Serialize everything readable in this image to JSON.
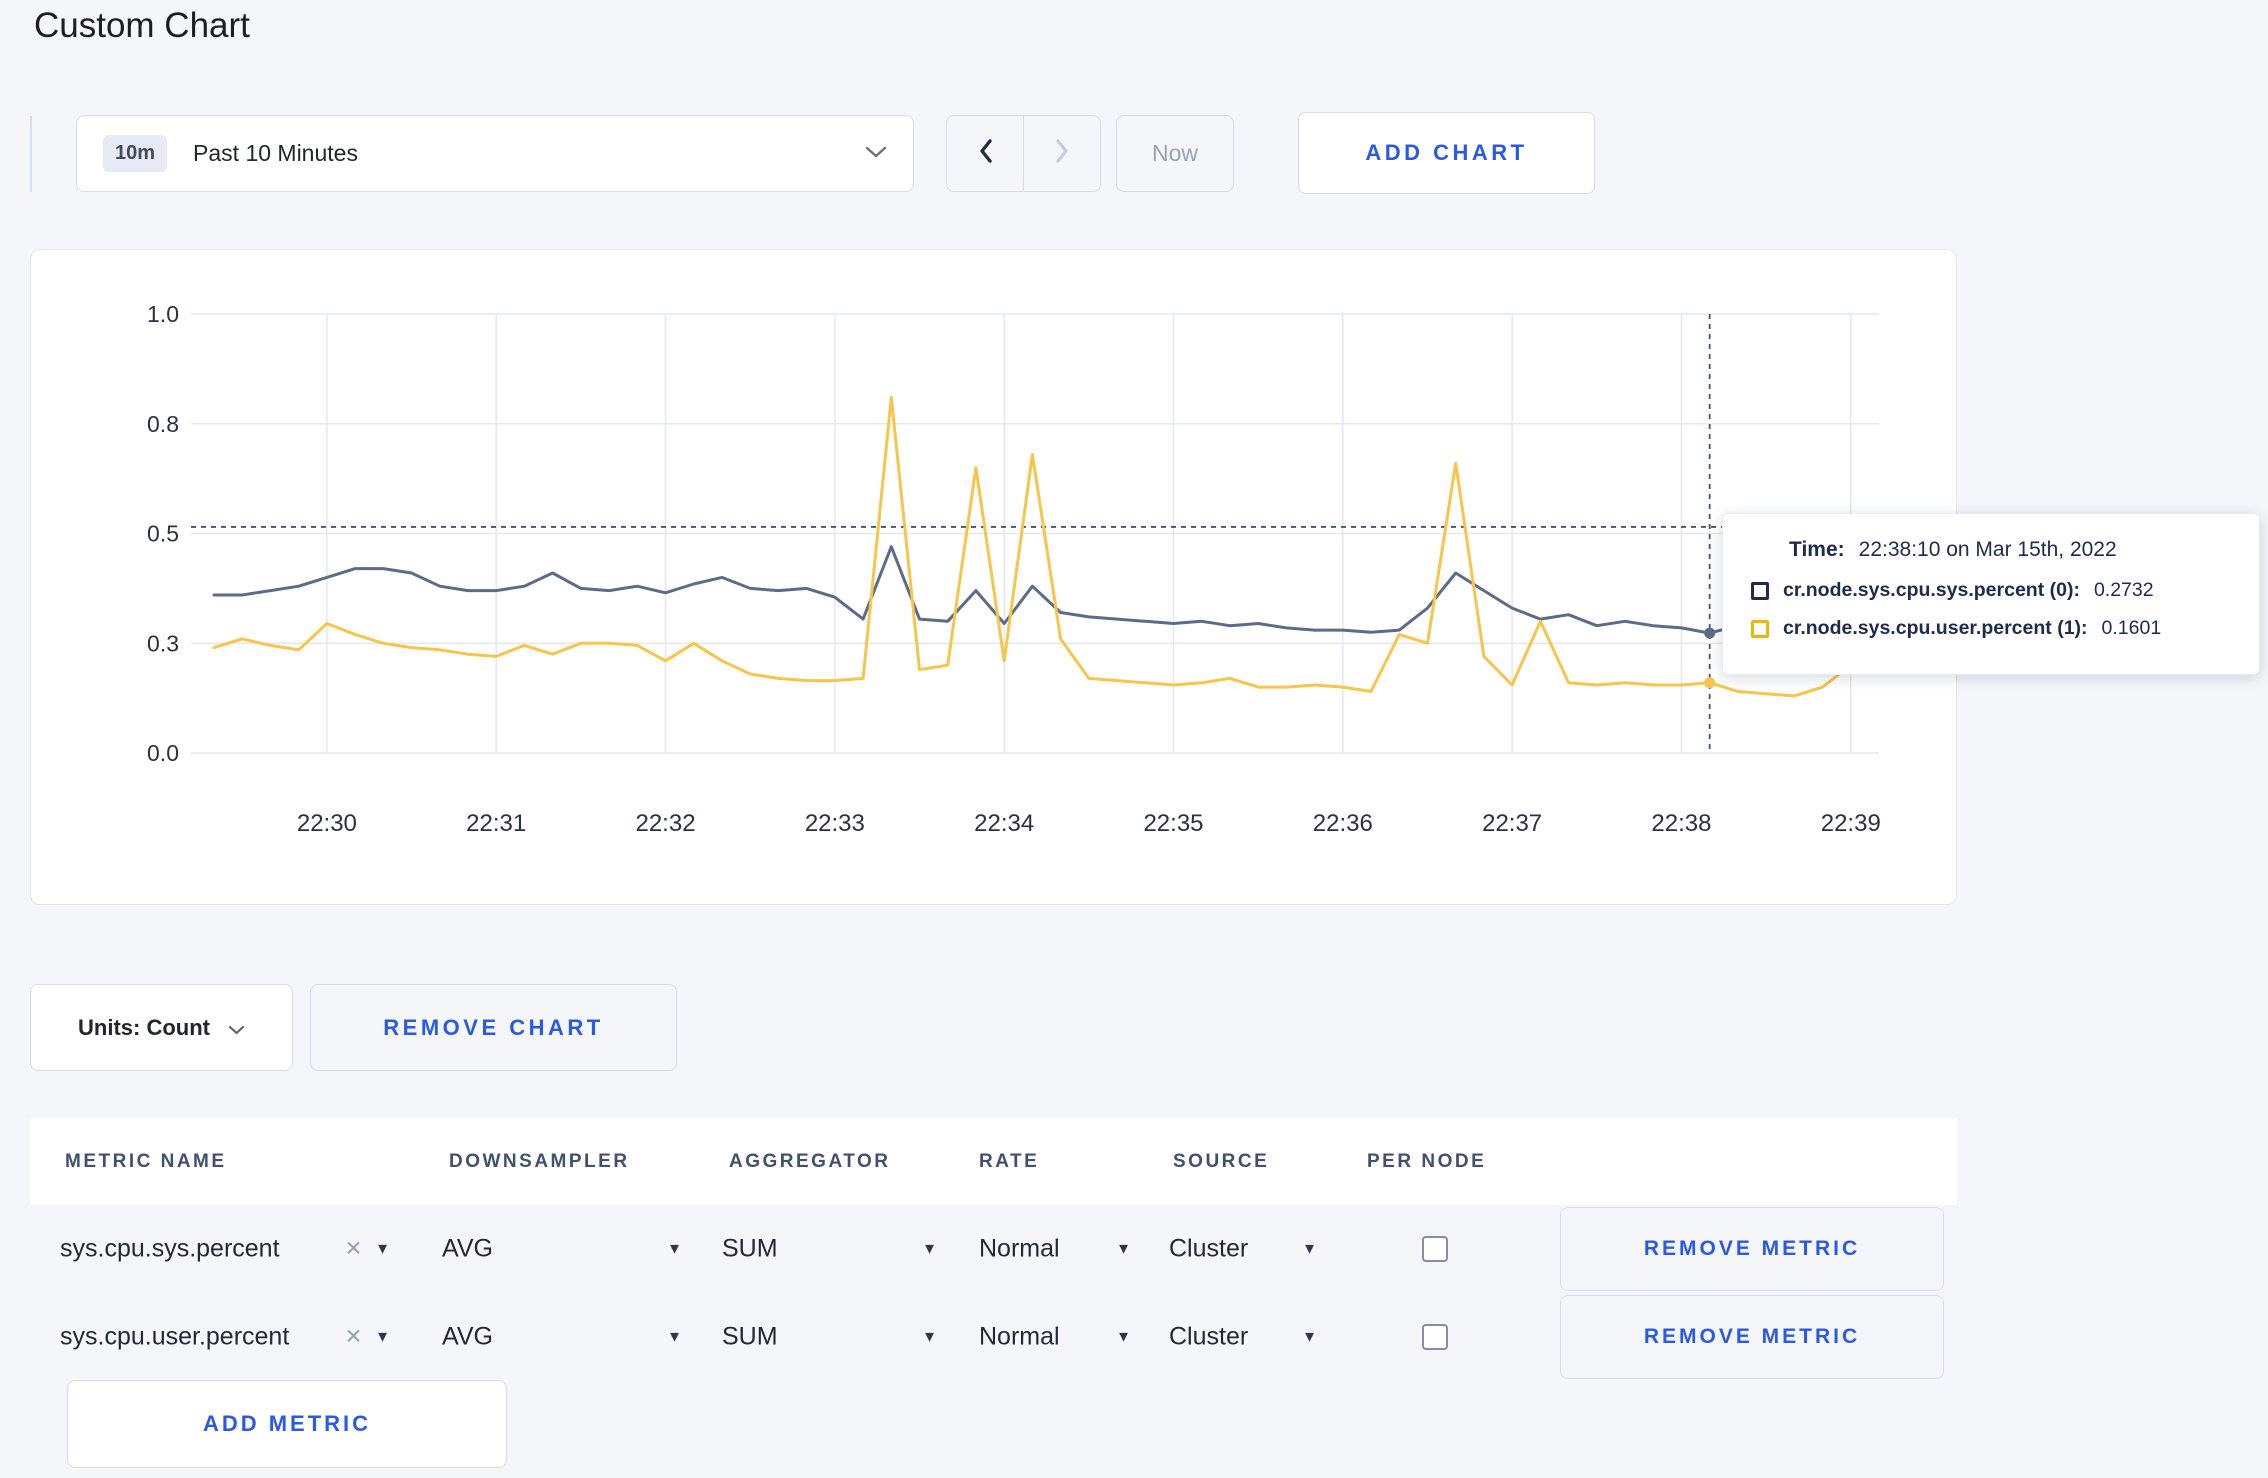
{
  "page": {
    "title": "Custom Chart"
  },
  "icons": {
    "clear": "✕",
    "caret_down": "▼"
  },
  "toolbar": {
    "time_range": {
      "badge": "10m",
      "label": "Past 10 Minutes"
    },
    "now_label": "Now",
    "add_chart_label": "ADD CHART"
  },
  "chart_data": {
    "type": "line",
    "title": "",
    "x_tick_labels": [
      "22:30",
      "22:31",
      "22:32",
      "22:33",
      "22:34",
      "22:35",
      "22:36",
      "22:37",
      "22:38",
      "22:39"
    ],
    "y_tick_labels_bottom_to_top": [
      "0.0",
      "0.3",
      "0.5",
      "0.8",
      "1.0"
    ],
    "y_tick_values": [
      0,
      0.25,
      0.5,
      0.75,
      1.0
    ],
    "ylim": [
      0,
      1
    ],
    "grid": true,
    "legend_position": "tooltip",
    "time_start": "22:29:20",
    "time_end": "22:39:10",
    "sample_interval_sec": 10,
    "series": [
      {
        "name": "cr.node.sys.cpu.sys.percent (0)",
        "color": "#5c6b87",
        "values": [
          0.36,
          0.36,
          0.37,
          0.38,
          0.4,
          0.42,
          0.42,
          0.41,
          0.38,
          0.37,
          0.37,
          0.38,
          0.41,
          0.375,
          0.37,
          0.38,
          0.365,
          0.385,
          0.4,
          0.375,
          0.37,
          0.375,
          0.355,
          0.305,
          0.47,
          0.305,
          0.3,
          0.37,
          0.295,
          0.38,
          0.32,
          0.31,
          0.305,
          0.3,
          0.295,
          0.3,
          0.29,
          0.295,
          0.285,
          0.28,
          0.28,
          0.275,
          0.28,
          0.33,
          0.41,
          0.37,
          0.33,
          0.305,
          0.315,
          0.29,
          0.3,
          0.29,
          0.285,
          0.2732,
          0.29,
          0.285,
          0.29,
          0.305,
          0.295,
          0.3
        ]
      },
      {
        "name": "cr.node.sys.cpu.user.percent (1)",
        "color": "#f6c54a",
        "values": [
          0.24,
          0.26,
          0.245,
          0.235,
          0.295,
          0.27,
          0.25,
          0.24,
          0.235,
          0.225,
          0.22,
          0.245,
          0.225,
          0.25,
          0.25,
          0.245,
          0.21,
          0.25,
          0.21,
          0.18,
          0.17,
          0.165,
          0.165,
          0.17,
          0.81,
          0.19,
          0.2,
          0.65,
          0.21,
          0.68,
          0.26,
          0.17,
          0.165,
          0.16,
          0.155,
          0.16,
          0.17,
          0.15,
          0.15,
          0.155,
          0.15,
          0.14,
          0.27,
          0.25,
          0.66,
          0.22,
          0.155,
          0.3,
          0.16,
          0.155,
          0.16,
          0.155,
          0.155,
          0.1601,
          0.14,
          0.135,
          0.13,
          0.15,
          0.2,
          0.27
        ]
      }
    ],
    "crosshair": {
      "index": 53,
      "hover_y_value": 0.515,
      "time": "22:38:10"
    }
  },
  "tooltip": {
    "time_label": "Time:",
    "time_value": "22:38:10 on Mar 15th, 2022",
    "entries": [
      {
        "name": "cr.node.sys.cpu.sys.percent (0):",
        "value": "0.2732",
        "swatch_color": "#1f2c4d"
      },
      {
        "name": "cr.node.sys.cpu.user.percent (1):",
        "value": "0.1601",
        "swatch_color": "#f0b40a"
      }
    ]
  },
  "chart_footer": {
    "units_label": "Units: Count",
    "remove_chart_label": "REMOVE CHART"
  },
  "metrics_table": {
    "columns": [
      "METRIC NAME",
      "DOWNSAMPLER",
      "AGGREGATOR",
      "RATE",
      "SOURCE",
      "PER NODE"
    ],
    "rows": [
      {
        "metric": "sys.cpu.sys.percent",
        "downsampler": "AVG",
        "aggregator": "SUM",
        "rate": "Normal",
        "source": "Cluster",
        "per_node_checked": false,
        "remove_label": "REMOVE METRIC"
      },
      {
        "metric": "sys.cpu.user.percent",
        "downsampler": "AVG",
        "aggregator": "SUM",
        "rate": "Normal",
        "source": "Cluster",
        "per_node_checked": false,
        "remove_label": "REMOVE METRIC"
      }
    ],
    "add_metric_label": "ADD METRIC"
  },
  "colors": {
    "accent_blue": "#2b5ae2",
    "page_background": "#f4f6fa",
    "gridline": "#e5e8ef",
    "crosshair": "#47536e"
  }
}
